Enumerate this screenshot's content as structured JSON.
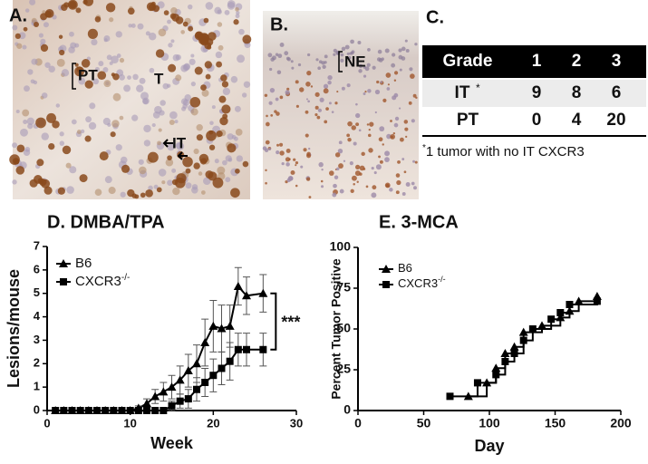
{
  "panel_a": {
    "label": "A.",
    "annotations": [
      "PT",
      "T",
      "IT"
    ]
  },
  "panel_b": {
    "label": "B.",
    "annotations": [
      "NE"
    ]
  },
  "panel_c": {
    "label": "C.",
    "table": {
      "header": [
        "Grade",
        1,
        2,
        3
      ],
      "rows": [
        [
          "IT",
          9,
          8,
          6
        ],
        [
          "PT",
          0,
          4,
          20
        ]
      ],
      "row_marks": [
        "*",
        null
      ]
    },
    "footnote_mark": "*",
    "footnote": "1 tumor with no IT CXCR3"
  },
  "chart_data": [
    {
      "type": "line",
      "title": "D. DMBA/TPA",
      "x_label": "Week",
      "y_label": "Lesions/mouse",
      "xlim": [
        0,
        30
      ],
      "xticks": [
        0,
        10,
        20,
        30
      ],
      "ylim": [
        0,
        7
      ],
      "yticks": [
        0,
        1,
        2,
        3,
        4,
        5,
        6,
        7
      ],
      "legend": "top-left",
      "annotation": "***",
      "series": [
        {
          "name": "B6",
          "color": "#000000",
          "marker": "triangle",
          "x": [
            1,
            2,
            3,
            4,
            5,
            6,
            7,
            8,
            9,
            10,
            11,
            12,
            13,
            14,
            15,
            16,
            17,
            18,
            19,
            20,
            21,
            22,
            23,
            24,
            26
          ],
          "values": [
            0,
            0,
            0,
            0,
            0,
            0,
            0,
            0,
            0,
            0,
            0.1,
            0.3,
            0.6,
            0.8,
            1.0,
            1.3,
            1.7,
            2.0,
            2.9,
            3.6,
            3.5,
            3.6,
            5.3,
            4.9,
            5.0
          ],
          "errors": [
            0,
            0,
            0,
            0,
            0,
            0,
            0,
            0,
            0,
            0,
            0.1,
            0.2,
            0.3,
            0.4,
            0.5,
            0.6,
            0.7,
            0.8,
            1.0,
            1.1,
            1.0,
            0.9,
            0.8,
            0.8,
            0.8
          ]
        },
        {
          "name": "CXCR3",
          "name_superscript": "-/-",
          "color": "#000000",
          "marker": "square",
          "x": [
            1,
            2,
            3,
            4,
            5,
            6,
            7,
            8,
            9,
            10,
            11,
            12,
            13,
            14,
            15,
            16,
            17,
            18,
            19,
            20,
            21,
            22,
            23,
            24,
            26
          ],
          "values": [
            0,
            0,
            0,
            0,
            0,
            0,
            0,
            0,
            0,
            0,
            0,
            0,
            0,
            0,
            0.2,
            0.4,
            0.5,
            0.9,
            1.2,
            1.5,
            1.8,
            2.1,
            2.6,
            2.6,
            2.6
          ],
          "errors": [
            0,
            0,
            0,
            0,
            0,
            0,
            0,
            0,
            0,
            0,
            0,
            0,
            0,
            0,
            0.2,
            0.3,
            0.4,
            0.5,
            0.6,
            0.7,
            0.7,
            0.8,
            0.7,
            0.7,
            0.7
          ]
        }
      ]
    },
    {
      "type": "step",
      "title": "E. 3-MCA",
      "x_label": "Day",
      "y_label": "Percent Tumor Positive",
      "xlim": [
        0,
        200
      ],
      "xticks": [
        0,
        50,
        100,
        150,
        200
      ],
      "ylim": [
        0,
        100
      ],
      "yticks": [
        0,
        25,
        50,
        75,
        100
      ],
      "legend": "top-left",
      "series": [
        {
          "name": "B6",
          "color": "#000000",
          "marker": "triangle",
          "x": [
            84,
            98,
            105,
            112,
            119,
            126,
            140,
            154,
            161,
            168,
            182
          ],
          "values": [
            8.7,
            17,
            26,
            35,
            39,
            48,
            52,
            57,
            61,
            67,
            70
          ]
        },
        {
          "name": "CXCR3",
          "name_superscript": "-/-",
          "color": "#000000",
          "marker": "square",
          "x": [
            70,
            91,
            105,
            112,
            119,
            126,
            133,
            147,
            154,
            161,
            182
          ],
          "values": [
            8.7,
            17,
            22,
            30,
            35,
            43,
            50,
            56,
            60,
            65,
            67
          ]
        }
      ]
    }
  ]
}
